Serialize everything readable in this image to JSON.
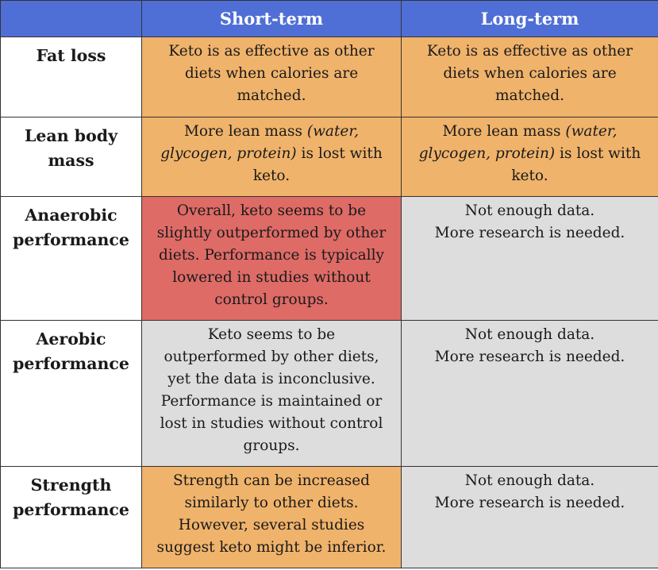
{
  "header": {
    "col1": "",
    "col2": "Short-term",
    "col3": "Long-term"
  },
  "colors": {
    "header": "#4f6fd6",
    "orange": "#f0b36b",
    "red": "#de6b66",
    "gray": "#dddddd"
  },
  "rows": [
    {
      "label_lines": [
        "Fat loss"
      ],
      "short": {
        "color": "orange",
        "lines": [
          "Keto is as effective as other",
          "diets when calories are",
          "matched."
        ]
      },
      "long": {
        "color": "orange",
        "lines": [
          "Keto is as effective as other",
          "diets when calories are",
          "matched."
        ]
      }
    },
    {
      "label_lines": [
        "Lean body",
        "mass"
      ],
      "short": {
        "color": "orange",
        "l1a": "More lean mass ",
        "l1b": "(water,",
        "l2a": "glycogen, protein)",
        "l2b": " is lost with",
        "l3": "keto."
      },
      "long": {
        "color": "orange",
        "l1a": "More lean mass ",
        "l1b": "(water,",
        "l2a": "glycogen, protein)",
        "l2b": " is lost with",
        "l3": "keto."
      }
    },
    {
      "label_lines": [
        "Anaerobic",
        "performance"
      ],
      "short": {
        "color": "red",
        "lines": [
          "Overall, keto seems to be",
          "slightly outperformed by other",
          "diets. Performance is typically",
          "lowered in studies without",
          "control groups."
        ]
      },
      "long": {
        "color": "gray",
        "lines": [
          "Not enough data.",
          "More research is needed."
        ]
      }
    },
    {
      "label_lines": [
        "Aerobic",
        "performance"
      ],
      "short": {
        "color": "gray",
        "lines": [
          "Keto seems to be",
          "outperformed by other diets,",
          "yet the data is inconclusive.",
          "Performance is maintained or",
          "lost in studies without control",
          "groups."
        ]
      },
      "long": {
        "color": "gray",
        "lines": [
          "Not enough data.",
          "More research is needed."
        ]
      }
    },
    {
      "label_lines": [
        "Strength",
        "performance"
      ],
      "short": {
        "color": "orange",
        "lines": [
          "Strength can be increased",
          "similarly to other diets.",
          "However, several studies",
          "suggest keto might be inferior."
        ]
      },
      "long": {
        "color": "gray",
        "lines": [
          "Not enough data.",
          "More research is needed."
        ]
      }
    }
  ]
}
